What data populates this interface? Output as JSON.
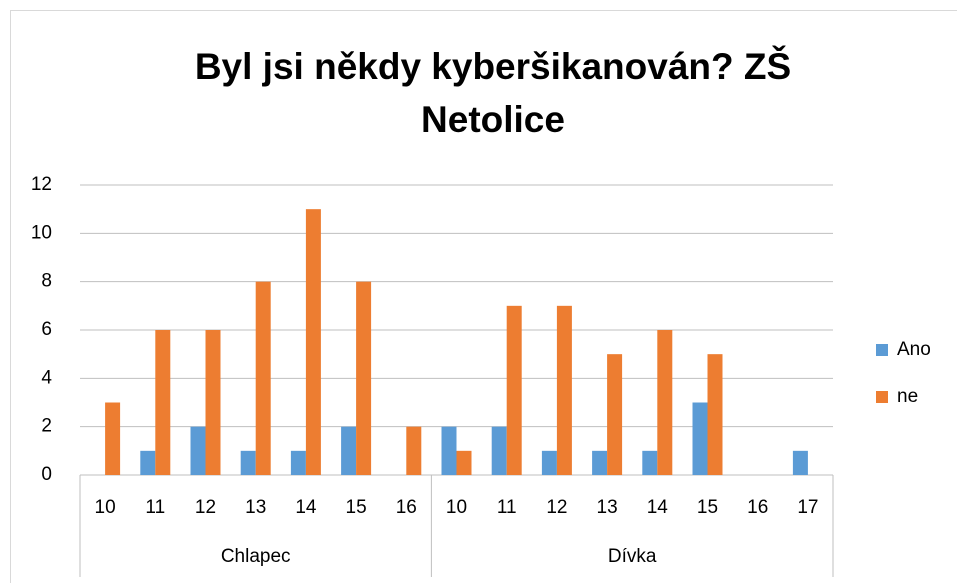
{
  "chart_data": {
    "type": "bar",
    "title": "Byl jsi někdy kyberšikanován? ZŠ Netolice",
    "categories": [
      "10",
      "11",
      "12",
      "13",
      "14",
      "15",
      "16",
      "10",
      "11",
      "12",
      "13",
      "14",
      "15",
      "16",
      "17"
    ],
    "category_groups": [
      "Chlapec",
      "Chlapec",
      "Chlapec",
      "Chlapec",
      "Chlapec",
      "Chlapec",
      "Chlapec",
      "Dívka",
      "Dívka",
      "Dívka",
      "Dívka",
      "Dívka",
      "Dívka",
      "Dívka",
      "Dívka"
    ],
    "series": [
      {
        "name": "Ano",
        "color": "#5b9bd5",
        "values": [
          0,
          1,
          2,
          1,
          1,
          2,
          0,
          2,
          2,
          1,
          1,
          1,
          3,
          0,
          1
        ]
      },
      {
        "name": "ne",
        "color": "#ed7d31",
        "values": [
          3,
          6,
          6,
          8,
          11,
          8,
          2,
          1,
          7,
          7,
          5,
          6,
          5,
          0,
          0
        ]
      }
    ],
    "ylim": [
      0,
      12
    ],
    "yticks": [
      0,
      2,
      4,
      6,
      8,
      10,
      12
    ],
    "grid": true,
    "legend": "right"
  }
}
